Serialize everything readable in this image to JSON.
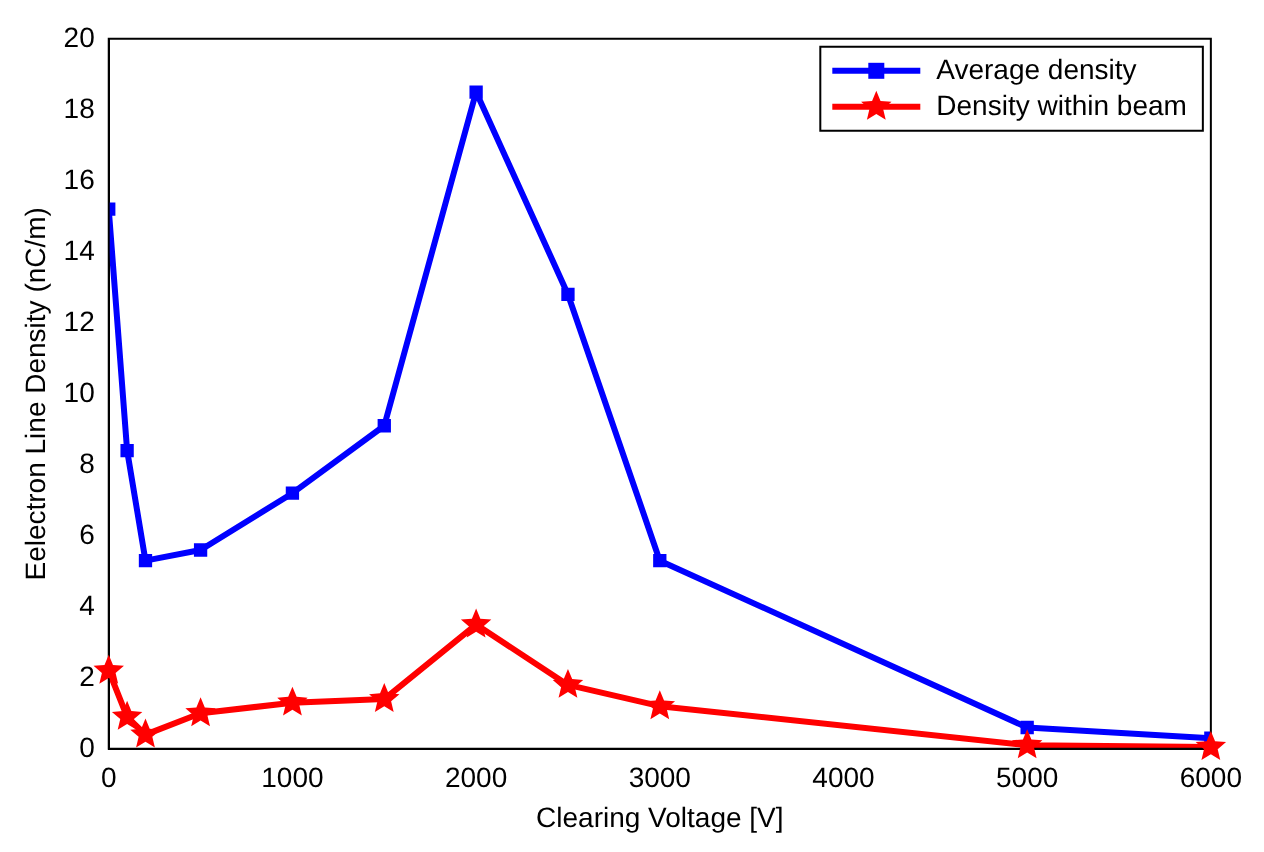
{
  "chart_data": {
    "type": "line",
    "xlabel": "Clearing Voltage [V]",
    "ylabel": "Eelectron Line Density (nC/m)",
    "x": [
      0,
      100,
      200,
      500,
      1000,
      1500,
      2000,
      2500,
      3000,
      5000,
      6000
    ],
    "series": [
      {
        "name": "Average density",
        "color": "#0000ff",
        "marker": "square",
        "values": [
          15.2,
          8.4,
          5.3,
          5.6,
          7.2,
          9.1,
          18.5,
          12.8,
          5.3,
          0.6,
          0.3
        ]
      },
      {
        "name": "Density within beam",
        "color": "#ff0000",
        "marker": "star",
        "values": [
          2.2,
          0.9,
          0.4,
          1.0,
          1.3,
          1.4,
          3.5,
          1.8,
          1.2,
          0.1,
          0.05
        ]
      }
    ],
    "xlim": [
      0,
      6000
    ],
    "xticks": [
      0,
      1000,
      2000,
      3000,
      4000,
      5000,
      6000
    ],
    "ylim": [
      0,
      20
    ],
    "yticks": [
      0,
      2,
      4,
      6,
      8,
      10,
      12,
      14,
      16,
      18,
      20
    ],
    "legend": "top right",
    "grid": false,
    "line_style": "solid"
  }
}
